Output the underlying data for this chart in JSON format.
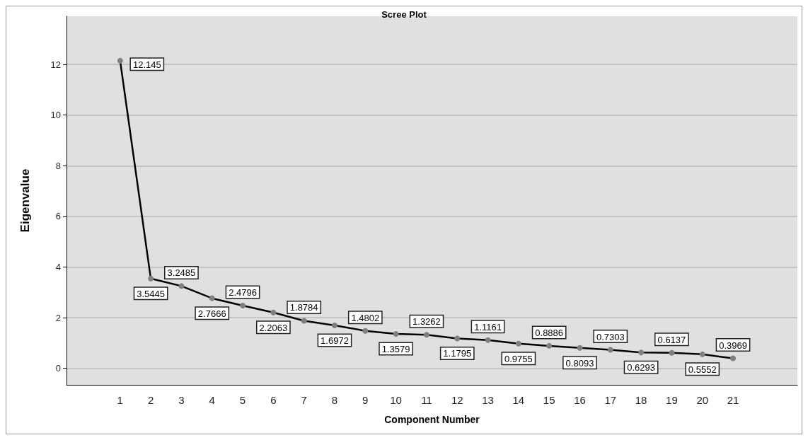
{
  "chart_data": {
    "type": "line",
    "title": "Scree Plot",
    "xlabel": "Component Number",
    "ylabel": "Eigenvalue",
    "x": [
      1,
      2,
      3,
      4,
      5,
      6,
      7,
      8,
      9,
      10,
      11,
      12,
      13,
      14,
      15,
      16,
      17,
      18,
      19,
      20,
      21
    ],
    "series": [
      {
        "color": "#000000",
        "values": [
          12.145,
          3.5445,
          3.2485,
          2.7666,
          2.4796,
          2.2063,
          1.8784,
          1.6972,
          1.4802,
          1.3579,
          1.3262,
          1.1795,
          1.1161,
          0.9755,
          0.8886,
          0.8093,
          0.7303,
          0.6293,
          0.6137,
          0.5552,
          0.3969
        ]
      }
    ],
    "xlim": [
      -0.75,
      23.1
    ],
    "xticks": [
      1,
      2,
      3,
      4,
      5,
      6,
      7,
      8,
      9,
      10,
      11,
      12,
      13,
      14,
      15,
      16,
      17,
      18,
      19,
      20,
      21
    ],
    "ylim": [
      -0.65,
      13.9
    ],
    "yticks": [
      0,
      2,
      4,
      6,
      8,
      10,
      12
    ],
    "grid": "y",
    "marker": "circle",
    "line_style": "solid",
    "data_labels": true
  }
}
